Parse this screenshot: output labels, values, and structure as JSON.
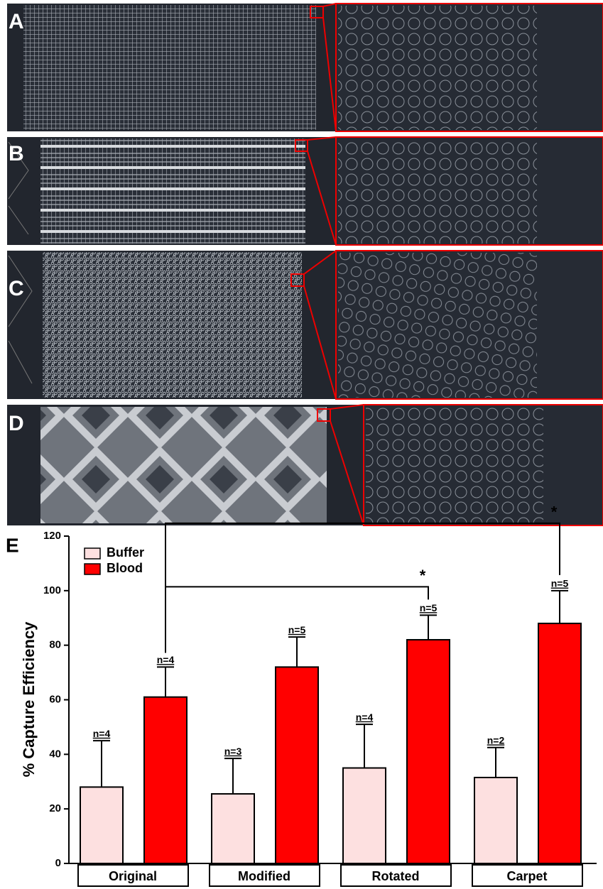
{
  "panels": [
    {
      "label": "A"
    },
    {
      "label": "B"
    },
    {
      "label": "C"
    },
    {
      "label": "D"
    }
  ],
  "chart_data": {
    "type": "bar",
    "panel_label": "E",
    "ylabel": "% Capture Efficiency",
    "categories": [
      "Original",
      "Modified",
      "Rotated",
      "Carpet"
    ],
    "ylim": [
      0,
      120
    ],
    "yticks": [
      0,
      20,
      40,
      60,
      80,
      100,
      120
    ],
    "legend": "upper left",
    "series": [
      {
        "name": "Buffer",
        "color": "#fde0e0",
        "values": [
          28,
          25.5,
          35,
          31.5
        ],
        "errors": [
          17,
          13,
          16,
          11
        ],
        "n_labels": [
          "n=4",
          "n=3",
          "n=4",
          "n=2"
        ]
      },
      {
        "name": "Blood",
        "color": "#ff0000",
        "values": [
          61,
          72,
          82,
          88
        ],
        "errors": [
          11,
          11,
          9,
          12
        ],
        "n_labels": [
          "n=4",
          "n=5",
          "n=5",
          "n=5"
        ]
      }
    ],
    "comparisons": [
      {
        "from": "Original",
        "to": "Rotated",
        "label": "*"
      },
      {
        "from": "Original",
        "to": "Carpet",
        "label": "*"
      }
    ]
  }
}
